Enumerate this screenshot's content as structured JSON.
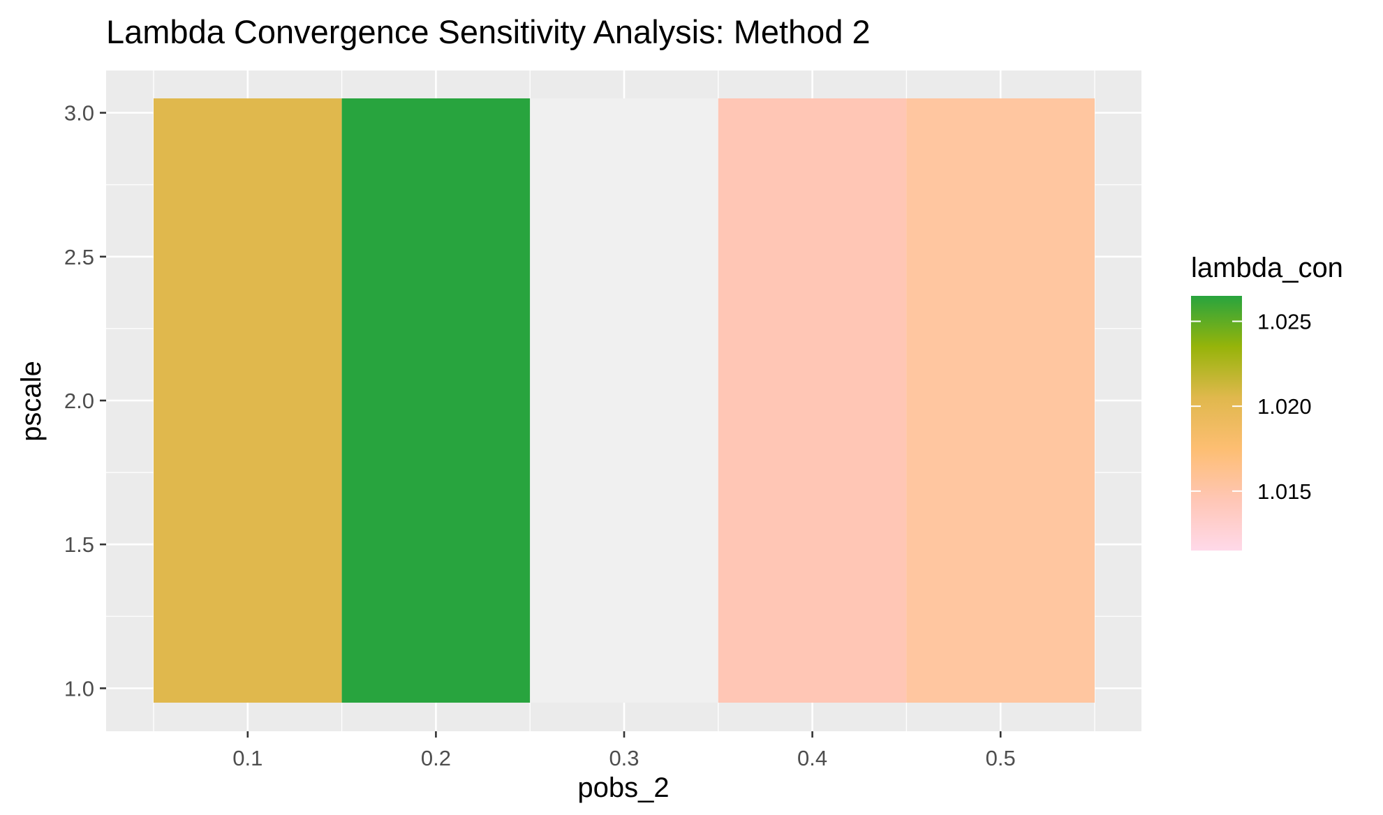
{
  "chart_data": {
    "type": "heatmap",
    "title": "Lambda Convergence Sensitivity Analysis: Method 2",
    "xlabel": "pobs_2",
    "ylabel": "pscale",
    "x_values": [
      0.1,
      0.2,
      0.3,
      0.4,
      0.5
    ],
    "x_tick_labels": [
      "0.1",
      "0.2",
      "0.3",
      "0.4",
      "0.5"
    ],
    "y_values": [
      1.0,
      3.0
    ],
    "y_tick_values": [
      1.0,
      1.5,
      2.0,
      2.5,
      3.0
    ],
    "y_tick_labels": [
      "1.0",
      "1.5",
      "2.0",
      "2.5",
      "3.0"
    ],
    "xlim": [
      0.05,
      0.55
    ],
    "ylim": [
      1.0,
      3.0
    ],
    "cells": [
      {
        "x": 0.1,
        "lambda_con": 1.0202,
        "color": "#E0B84D"
      },
      {
        "x": 0.2,
        "lambda_con": 1.0265,
        "color": "#28A43E"
      },
      {
        "x": 0.3,
        "lambda_con": null,
        "color": "#F0F0F0"
      },
      {
        "x": 0.4,
        "lambda_con": 1.015,
        "color": "#FFC6B5"
      },
      {
        "x": 0.5,
        "lambda_con": 1.016,
        "color": "#FFC6A0"
      }
    ],
    "legend": {
      "title": "lambda_con",
      "position": "right",
      "range": [
        1.0115,
        1.0265
      ],
      "breaks": [
        1.015,
        1.02,
        1.025
      ],
      "break_labels": [
        "1.015",
        "1.020",
        "1.025"
      ],
      "gradient_colors": [
        "#FFD9E9",
        "#FFC6B5",
        "#FDBE72",
        "#E0B84D",
        "#96B40A",
        "#28A43E"
      ]
    },
    "grid": true,
    "panel_background": "#EBEBEB",
    "grid_color": "#FFFFFF",
    "na_color": "#F0F0F0"
  }
}
